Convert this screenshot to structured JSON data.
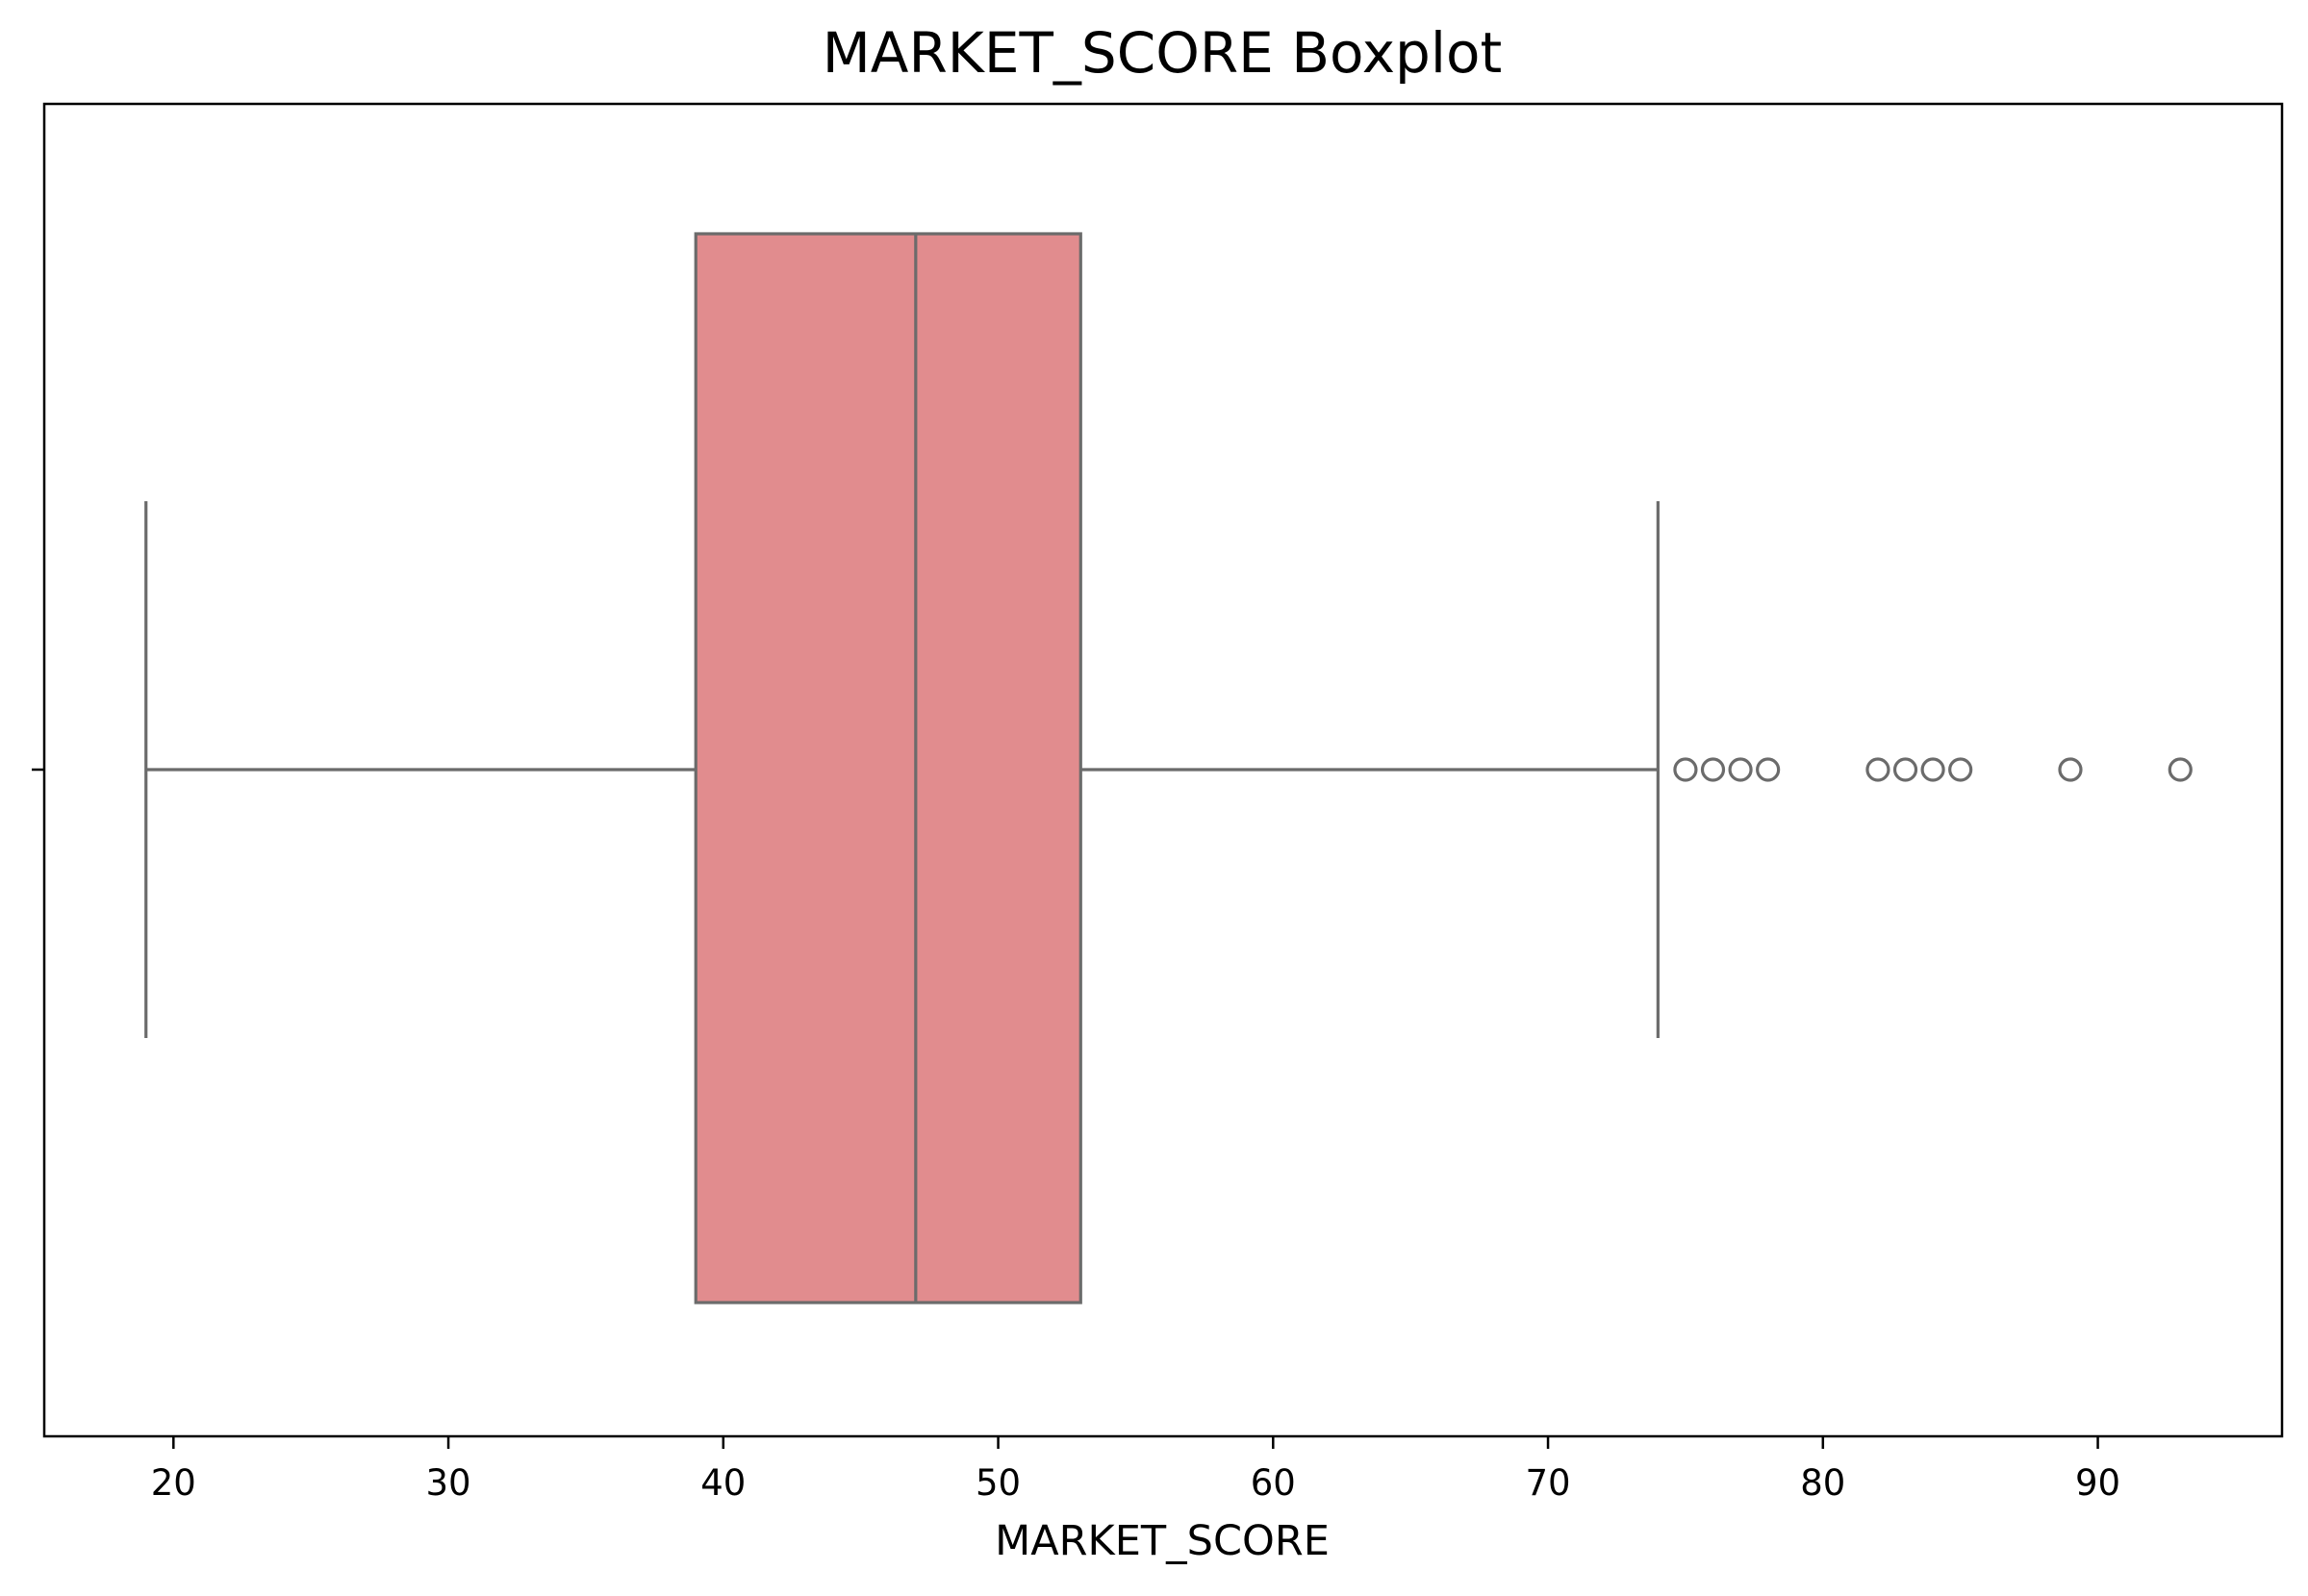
{
  "chart_data": {
    "type": "boxplot",
    "title": "MARKET_SCORE Boxplot",
    "xlabel": "MARKET_SCORE",
    "ylabel": "",
    "orientation": "horizontal",
    "xlim": [
      15.3,
      96.7
    ],
    "xticks": [
      20,
      30,
      40,
      50,
      60,
      70,
      80,
      90
    ],
    "grid": false,
    "box": {
      "whisker_low": 19,
      "q1": 39,
      "median": 47,
      "q3": 53,
      "whisker_high": 74,
      "outliers": [
        75,
        76,
        77,
        78,
        82,
        83,
        84,
        85,
        89,
        93
      ]
    },
    "colors": {
      "box_fill": "#e18c8e",
      "lines": "#6b6b6b",
      "axes": "#000000"
    }
  }
}
